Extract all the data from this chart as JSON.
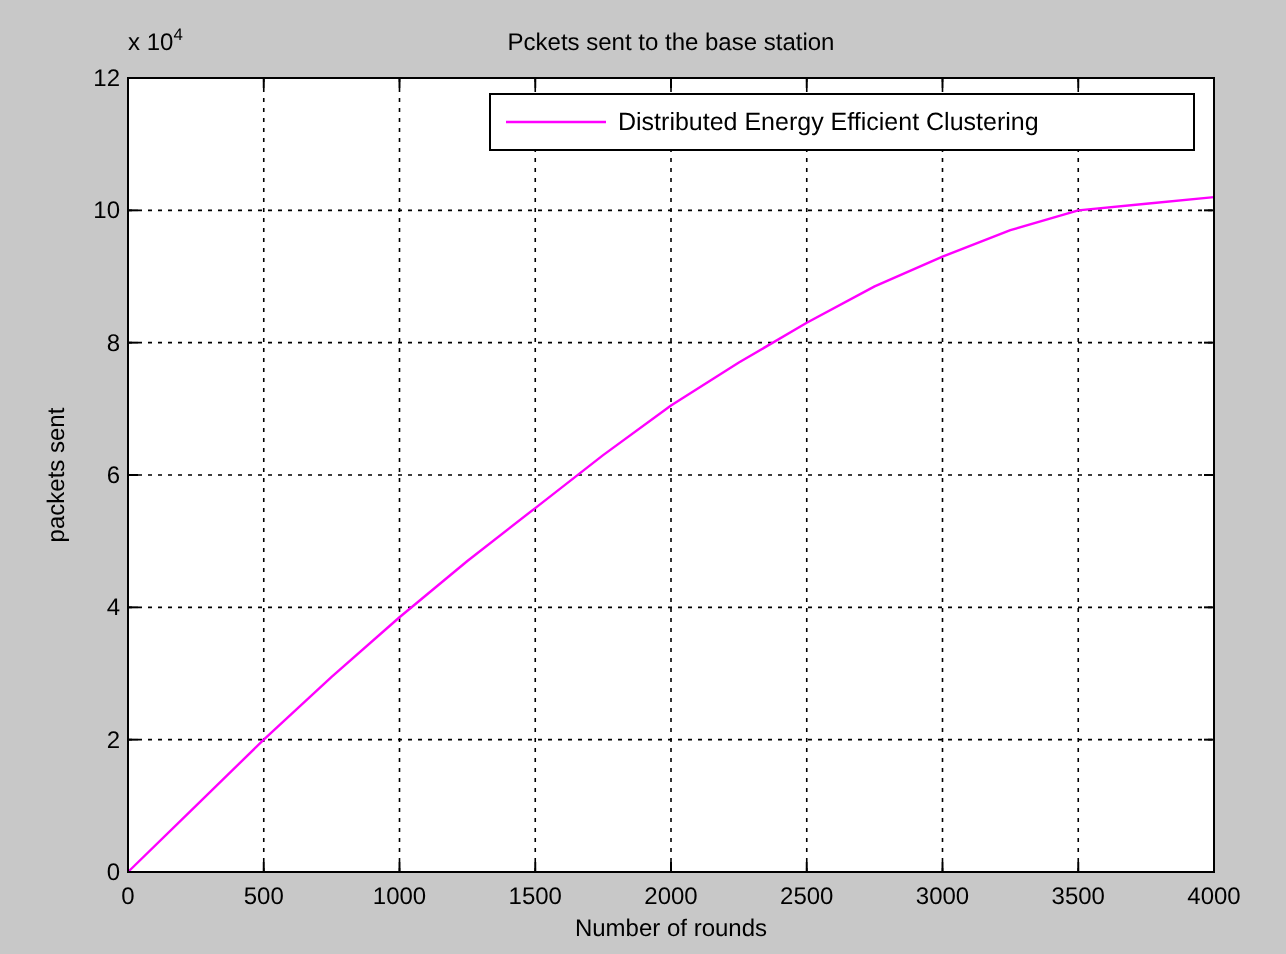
{
  "chart_data": {
    "type": "line",
    "title": "Pckets sent to the base station",
    "xlabel": "Number of rounds",
    "ylabel": "packets sent",
    "annotations": [
      "x 10$^{4}$"
    ],
    "x": [
      0,
      250,
      500,
      750,
      1000,
      1250,
      1500,
      1750,
      2000,
      2250,
      2500,
      2750,
      3000,
      3250,
      3500,
      3750,
      4000
    ],
    "series": [
      {
        "name": "Distributed Energy Efficient Clustering",
        "color": "#ff00ff",
        "values": [
          0,
          1.0,
          2.0,
          2.95,
          3.85,
          4.7,
          5.5,
          6.3,
          7.05,
          7.7,
          8.3,
          8.85,
          9.3,
          9.7,
          10.0,
          10.1,
          10.2
        ]
      }
    ],
    "xlim": [
      0,
      4000
    ],
    "xticks": [
      0,
      500,
      1000,
      1500,
      2000,
      2500,
      3000,
      3500,
      4000
    ],
    "ylim": [
      0,
      12
    ],
    "yticks": [
      0,
      2,
      4,
      6,
      8,
      10,
      12
    ],
    "grid": true,
    "legend": "top right",
    "marker": "none",
    "line_style": "solid"
  }
}
